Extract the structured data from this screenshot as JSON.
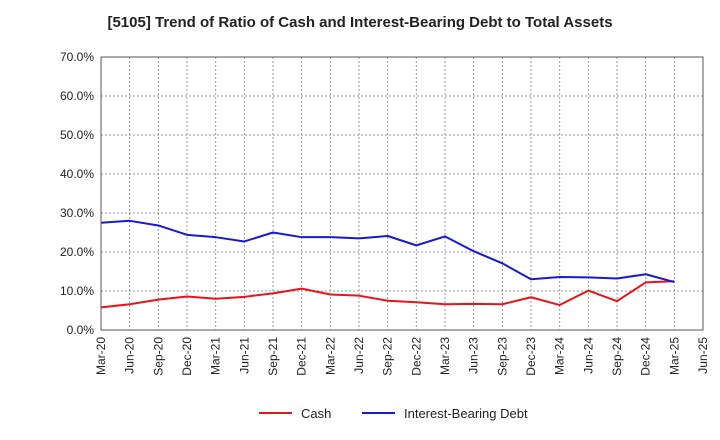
{
  "chart_data": {
    "type": "line",
    "title": "[5105]  Trend of Ratio of Cash and Interest-Bearing Debt to Total Assets",
    "xlabel": "",
    "ylabel": "",
    "ylim": [
      0,
      70
    ],
    "y_ticks": [
      "0.0%",
      "10.0%",
      "20.0%",
      "30.0%",
      "40.0%",
      "50.0%",
      "60.0%",
      "70.0%"
    ],
    "categories": [
      "Mar-20",
      "Jun-20",
      "Sep-20",
      "Dec-20",
      "Mar-21",
      "Jun-21",
      "Sep-21",
      "Dec-21",
      "Mar-22",
      "Jun-22",
      "Sep-22",
      "Dec-22",
      "Mar-23",
      "Jun-23",
      "Sep-23",
      "Dec-23",
      "Mar-24",
      "Jun-24",
      "Sep-24",
      "Dec-24",
      "Mar-25",
      "Jun-25"
    ],
    "grid": true,
    "legend_position": "bottom",
    "series": [
      {
        "name": "Cash",
        "color": "#e8141c",
        "values": [
          5.8,
          6.6,
          7.8,
          8.6,
          8.0,
          8.5,
          9.4,
          10.6,
          9.1,
          8.8,
          7.5,
          7.1,
          6.6,
          6.7,
          6.6,
          8.4,
          6.4,
          10.1,
          7.4,
          12.2,
          12.5,
          null
        ]
      },
      {
        "name": "Interest-Bearing Debt",
        "color": "#1818d8",
        "values": [
          27.5,
          28.0,
          26.8,
          24.4,
          23.8,
          22.7,
          25.0,
          23.8,
          23.8,
          23.5,
          24.1,
          21.7,
          24.0,
          20.2,
          17.1,
          13.0,
          13.6,
          13.5,
          13.2,
          14.3,
          12.3,
          null
        ]
      }
    ]
  }
}
